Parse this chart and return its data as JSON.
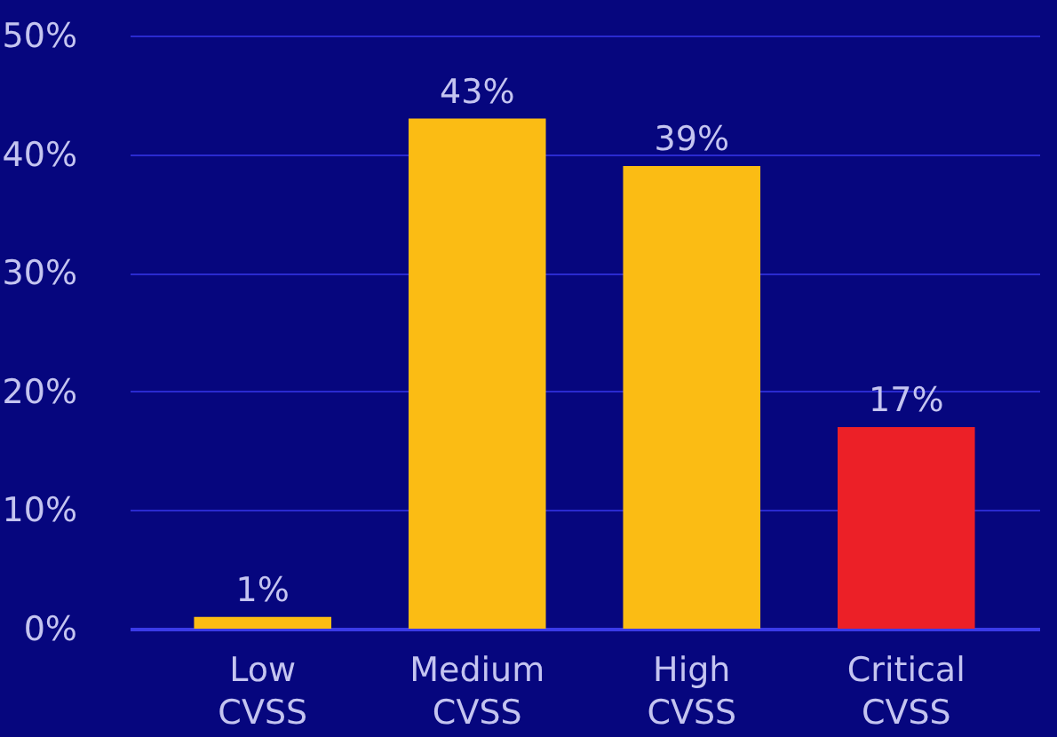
{
  "chart_data": {
    "type": "bar",
    "categories": [
      "Low\nCVSS",
      "Medium\nCVSS",
      "High\nCVSS",
      "Critical\nCVSS"
    ],
    "values": [
      1,
      43,
      39,
      17
    ],
    "colors": [
      "#fbbc14",
      "#fbbc14",
      "#fbbc14",
      "#ec2027"
    ],
    "value_labels": [
      "1%",
      "43%",
      "39%",
      "17%"
    ],
    "ylim": [
      0,
      53
    ],
    "yticks": [
      {
        "value": 0,
        "label": "0%"
      },
      {
        "value": 10,
        "label": "10%"
      },
      {
        "value": 20,
        "label": "20%"
      },
      {
        "value": 30,
        "label": "30%"
      },
      {
        "value": 40,
        "label": "40%"
      },
      {
        "value": 50,
        "label": "50%"
      }
    ],
    "grid": "y"
  }
}
